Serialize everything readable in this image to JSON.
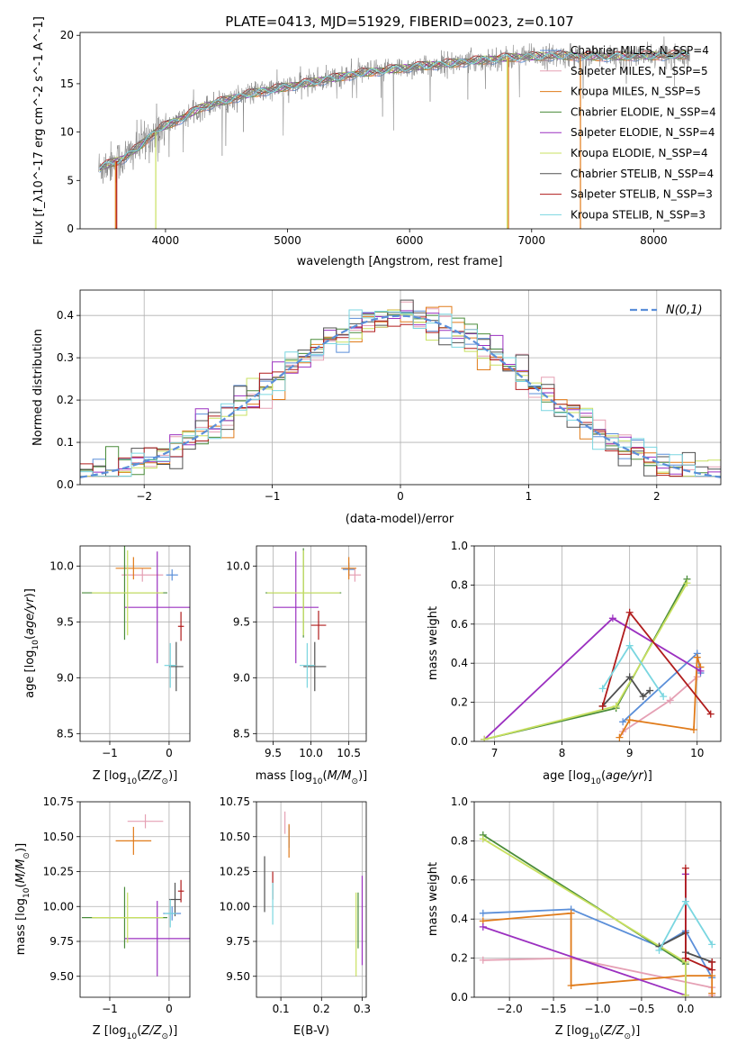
{
  "title": "PLATE=0413, MJD=51929, FIBERID=0023, z=0.107",
  "colors": {
    "chabrier_miles": "#5b8fd9",
    "salpeter_miles": "#e5a0b4",
    "kroupa_miles": "#e07b1a",
    "chabrier_elodie": "#4a8c3a",
    "salpeter_elodie": "#9b30c0",
    "kroupa_elodie": "#c8e060",
    "chabrier_stelib": "#505050",
    "salpeter_stelib": "#b01c1c",
    "kroupa_stelib": "#7ad6e0",
    "data": "#808080",
    "normal": "#5b8fd9"
  },
  "chart_data": [
    {
      "id": "spectrum",
      "type": "line",
      "xlabel": "wavelength [Angstrom, rest frame]",
      "ylabel": "Flux [f_λ10^-17 erg cm^-2 s^-1 A^-1]",
      "xlim": [
        3300,
        8550
      ],
      "ylim": [
        0,
        20.3
      ],
      "xticks": [
        4000,
        5000,
        6000,
        7000,
        8000
      ],
      "yticks": [
        0,
        5,
        10,
        15,
        20
      ],
      "legend": "right",
      "legend_entries": [
        "Chabrier MILES, N_SSP=4",
        "Salpeter MILES, N_SSP=5",
        "Kroupa MILES, N_SSP=5",
        "Chabrier ELODIE, N_SSP=4",
        "Salpeter ELODIE, N_SSP=4",
        "Kroupa ELODIE, N_SSP=4",
        "Chabrier STELIB, N_SSP=4",
        "Salpeter STELIB, N_SSP=3",
        "Kroupa STELIB, N_SSP=3"
      ],
      "continuum": [
        [
          3450,
          6.2
        ],
        [
          3550,
          6.8
        ],
        [
          3650,
          7.2
        ],
        [
          3800,
          8.7
        ],
        [
          3950,
          10.4
        ],
        [
          4100,
          11.2
        ],
        [
          4300,
          12.6
        ],
        [
          4500,
          13.3
        ],
        [
          4700,
          14.0
        ],
        [
          5000,
          14.7
        ],
        [
          5300,
          15.4
        ],
        [
          5600,
          16.1
        ],
        [
          6000,
          16.7
        ],
        [
          6400,
          17.2
        ],
        [
          6800,
          17.7
        ],
        [
          7200,
          17.9
        ],
        [
          7600,
          17.8
        ],
        [
          8000,
          17.9
        ],
        [
          8300,
          18.0
        ]
      ]
    },
    {
      "id": "residuals",
      "type": "line",
      "xlabel": "(data-model)/error",
      "ylabel": "Normed distribution",
      "xlim": [
        -2.5,
        2.5
      ],
      "ylim": [
        0,
        0.46
      ],
      "xticks": [
        -2,
        -1,
        0,
        1,
        2
      ],
      "yticks": [
        0,
        0.1,
        0.2,
        0.3,
        0.4
      ],
      "grid": true,
      "legend": "top-right",
      "normal_label": "N(0,1)",
      "bin_width": 0.1
    },
    {
      "id": "age_vs_Z",
      "type": "scatter",
      "xlabel": "Z [log10(Z/Z⊙)]",
      "ylabel": "age  [log10(age/yr)]",
      "xlim": [
        -1.5,
        0.35
      ],
      "ylim": [
        8.43,
        10.18
      ],
      "xticks": [
        -1,
        0
      ],
      "yticks": [
        8.5,
        9.0,
        9.5,
        10.0
      ],
      "grid": true,
      "points": [
        {
          "c": "chabrier_miles",
          "x": 0.05,
          "xerr": 0.1,
          "y": 9.92,
          "yerr": 0.05
        },
        {
          "c": "salpeter_miles",
          "x": -0.45,
          "xerr": 0.35,
          "y": 9.92,
          "yerr": 0.06
        },
        {
          "c": "kroupa_miles",
          "x": -0.6,
          "xerr": 0.3,
          "y": 9.98,
          "yerr": 0.1
        },
        {
          "c": "chabrier_elodie",
          "x": -0.75,
          "xerr": 0.72,
          "y": 9.76,
          "yerr": 0.42
        },
        {
          "c": "salpeter_elodie",
          "x": -0.2,
          "xerr": 0.55,
          "y": 9.63,
          "yerr": 0.5
        },
        {
          "c": "kroupa_elodie",
          "x": -0.7,
          "xerr": 0.6,
          "y": 9.76,
          "yerr": 0.38
        },
        {
          "c": "chabrier_stelib",
          "x": 0.12,
          "xerr": 0.12,
          "y": 9.1,
          "yerr": 0.22
        },
        {
          "c": "salpeter_stelib",
          "x": 0.2,
          "xerr": 0.05,
          "y": 9.46,
          "yerr": 0.13
        },
        {
          "c": "kroupa_stelib",
          "x": 0.02,
          "xerr": 0.1,
          "y": 9.11,
          "yerr": 0.2
        }
      ]
    },
    {
      "id": "age_vs_mass",
      "type": "scatter",
      "xlabel": "mass [log10(M/M⊙)]",
      "ylabel": "",
      "xlim": [
        9.28,
        10.73
      ],
      "ylim": [
        8.43,
        10.18
      ],
      "xticks": [
        9.5,
        10.0,
        10.5
      ],
      "yticks": [
        8.5,
        9.0,
        9.5,
        10.0
      ],
      "grid": true,
      "points": [
        {
          "c": "chabrier_miles",
          "x": 10.5,
          "xerr": 0.08,
          "y": 9.97,
          "yerr": 0.06
        },
        {
          "c": "salpeter_miles",
          "x": 10.58,
          "xerr": 0.08,
          "y": 9.92,
          "yerr": 0.06
        },
        {
          "c": "kroupa_miles",
          "x": 10.5,
          "xerr": 0.1,
          "y": 9.98,
          "yerr": 0.1
        },
        {
          "c": "chabrier_elodie",
          "x": 9.9,
          "xerr": 0.5,
          "y": 9.76,
          "yerr": 0.4
        },
        {
          "c": "salpeter_elodie",
          "x": 9.8,
          "xerr": 0.3,
          "y": 9.63,
          "yerr": 0.5
        },
        {
          "c": "kroupa_elodie",
          "x": 9.9,
          "xerr": 0.48,
          "y": 9.76,
          "yerr": 0.38
        },
        {
          "c": "chabrier_stelib",
          "x": 10.05,
          "xerr": 0.15,
          "y": 9.1,
          "yerr": 0.22
        },
        {
          "c": "salpeter_stelib",
          "x": 10.1,
          "xerr": 0.1,
          "y": 9.47,
          "yerr": 0.13
        },
        {
          "c": "kroupa_stelib",
          "x": 9.95,
          "xerr": 0.1,
          "y": 9.11,
          "yerr": 0.2
        }
      ]
    },
    {
      "id": "mass_weight_vs_age",
      "type": "line",
      "xlabel": "age  [log10(age/yr)]",
      "ylabel": "mass weight",
      "xlim": [
        6.7,
        10.35
      ],
      "ylim": [
        0,
        1.0
      ],
      "xticks": [
        7,
        8,
        9,
        10
      ],
      "yticks": [
        0.0,
        0.2,
        0.4,
        0.6,
        0.8,
        1.0
      ],
      "grid": true,
      "series": [
        {
          "c": "chabrier_miles",
          "x": [
            8.9,
            10.0,
            10.05
          ],
          "y": [
            0.1,
            0.45,
            0.35
          ]
        },
        {
          "c": "salpeter_miles",
          "x": [
            8.9,
            9.6,
            10.0
          ],
          "y": [
            0.05,
            0.21,
            0.33
          ]
        },
        {
          "c": "kroupa_miles",
          "x": [
            8.85,
            9.0,
            9.95,
            10.0,
            10.05
          ],
          "y": [
            0.02,
            0.11,
            0.06,
            0.43,
            0.38
          ]
        },
        {
          "c": "chabrier_elodie",
          "x": [
            6.85,
            8.8,
            9.85
          ],
          "y": [
            0.01,
            0.17,
            0.83
          ]
        },
        {
          "c": "salpeter_elodie",
          "x": [
            6.85,
            8.75,
            10.05
          ],
          "y": [
            0.01,
            0.63,
            0.36
          ]
        },
        {
          "c": "kroupa_elodie",
          "x": [
            6.85,
            8.8,
            9.85
          ],
          "y": [
            0.01,
            0.18,
            0.81
          ]
        },
        {
          "c": "chabrier_stelib",
          "x": [
            8.6,
            9.0,
            9.2,
            9.3
          ],
          "y": [
            0.18,
            0.33,
            0.23,
            0.26
          ]
        },
        {
          "c": "salpeter_stelib",
          "x": [
            8.6,
            9.0,
            10.2
          ],
          "y": [
            0.18,
            0.66,
            0.14
          ]
        },
        {
          "c": "kroupa_stelib",
          "x": [
            8.6,
            9.0,
            9.5
          ],
          "y": [
            0.27,
            0.49,
            0.23
          ]
        }
      ]
    },
    {
      "id": "mass_vs_Z",
      "type": "scatter",
      "xlabel": "Z [log10(Z/Z⊙)]",
      "ylabel": "mass [log10(M/M⊙)]",
      "xlim": [
        -1.5,
        0.35
      ],
      "ylim": [
        9.35,
        10.75
      ],
      "xticks": [
        -1,
        0
      ],
      "yticks": [
        9.5,
        9.75,
        10.0,
        10.25,
        10.5,
        10.75
      ],
      "grid": true,
      "points": [
        {
          "c": "chabrier_miles",
          "x": 0.05,
          "xerr": 0.15,
          "y": 9.95,
          "yerr": 0.05
        },
        {
          "c": "salpeter_miles",
          "x": -0.4,
          "xerr": 0.3,
          "y": 10.61,
          "yerr": 0.05
        },
        {
          "c": "kroupa_miles",
          "x": -0.6,
          "xerr": 0.3,
          "y": 10.47,
          "yerr": 0.1
        },
        {
          "c": "chabrier_elodie",
          "x": -0.75,
          "xerr": 0.72,
          "y": 9.92,
          "yerr": 0.22
        },
        {
          "c": "salpeter_elodie",
          "x": -0.2,
          "xerr": 0.55,
          "y": 9.77,
          "yerr": 0.27
        },
        {
          "c": "kroupa_elodie",
          "x": -0.7,
          "xerr": 0.6,
          "y": 9.92,
          "yerr": 0.18
        },
        {
          "c": "chabrier_stelib",
          "x": 0.1,
          "xerr": 0.1,
          "y": 10.05,
          "yerr": 0.12
        },
        {
          "c": "salpeter_stelib",
          "x": 0.2,
          "xerr": 0.05,
          "y": 10.11,
          "yerr": 0.08
        },
        {
          "c": "kroupa_stelib",
          "x": 0.02,
          "xerr": 0.1,
          "y": 9.95,
          "yerr": 0.1
        }
      ]
    },
    {
      "id": "mass_vs_ebv",
      "type": "scatter",
      "xlabel": "E(B-V)",
      "ylabel": "",
      "xlim": [
        0.04,
        0.31
      ],
      "ylim": [
        9.35,
        10.75
      ],
      "xticks": [
        0.1,
        0.2,
        0.3
      ],
      "yticks": [
        9.5,
        9.75,
        10.0,
        10.25,
        10.5,
        10.75
      ],
      "grid": true,
      "points": [
        {
          "c": "chabrier_miles",
          "x": 0.12,
          "xerr": 0,
          "y": 10.5,
          "yerr": 0.08
        },
        {
          "c": "salpeter_miles",
          "x": 0.11,
          "xerr": 0,
          "y": 10.6,
          "yerr": 0.08
        },
        {
          "c": "kroupa_miles",
          "x": 0.12,
          "xerr": 0,
          "y": 10.47,
          "yerr": 0.12
        },
        {
          "c": "chabrier_elodie",
          "x": 0.29,
          "xerr": 0,
          "y": 9.9,
          "yerr": 0.2
        },
        {
          "c": "salpeter_elodie",
          "x": 0.3,
          "xerr": 0,
          "y": 9.9,
          "yerr": 0.32
        },
        {
          "c": "kroupa_elodie",
          "x": 0.285,
          "xerr": 0,
          "y": 9.8,
          "yerr": 0.3
        },
        {
          "c": "chabrier_stelib",
          "x": 0.06,
          "xerr": 0,
          "y": 10.16,
          "yerr": 0.2
        },
        {
          "c": "salpeter_stelib",
          "x": 0.08,
          "xerr": 0,
          "y": 10.15,
          "yerr": 0.1
        },
        {
          "c": "kroupa_stelib",
          "x": 0.08,
          "xerr": 0,
          "y": 10.02,
          "yerr": 0.15
        }
      ]
    },
    {
      "id": "mass_weight_vs_Z",
      "type": "line",
      "xlabel": "Z [log10(Z/Z⊙)]",
      "ylabel": "mass weight",
      "xlim": [
        -2.4,
        0.4
      ],
      "ylim": [
        0,
        1.0
      ],
      "xticks": [
        -2.0,
        -1.5,
        -1.0,
        -0.5,
        0.0
      ],
      "yticks": [
        0.0,
        0.2,
        0.4,
        0.6,
        0.8,
        1.0
      ],
      "grid": true,
      "series": [
        {
          "c": "chabrier_miles",
          "x": [
            -2.3,
            -1.3,
            -0.3,
            0.0,
            0.3
          ],
          "y": [
            0.43,
            0.45,
            0.26,
            0.34,
            0.1
          ]
        },
        {
          "c": "salpeter_miles",
          "x": [
            -2.3,
            -1.3,
            0.3,
            0.3
          ],
          "y": [
            0.19,
            0.2,
            0.05,
            0.01
          ]
        },
        {
          "c": "kroupa_miles",
          "x": [
            -2.3,
            -1.3,
            -1.3,
            0.0,
            0.3,
            0.3
          ],
          "y": [
            0.39,
            0.43,
            0.06,
            0.11,
            0.11,
            0.02
          ]
        },
        {
          "c": "chabrier_elodie",
          "x": [
            -2.3,
            0.0,
            0.0
          ],
          "y": [
            0.83,
            0.17,
            0.01
          ]
        },
        {
          "c": "salpeter_elodie",
          "x": [
            -2.3,
            0.0,
            0.0
          ],
          "y": [
            0.36,
            0.01,
            0.63
          ]
        },
        {
          "c": "kroupa_elodie",
          "x": [
            -2.3,
            0.0,
            0.0
          ],
          "y": [
            0.81,
            0.18,
            0.01
          ]
        },
        {
          "c": "chabrier_stelib",
          "x": [
            -0.3,
            0.0,
            0.0,
            0.3
          ],
          "y": [
            0.26,
            0.33,
            0.23,
            0.18
          ]
        },
        {
          "c": "salpeter_stelib",
          "x": [
            0.0,
            0.0,
            0.3,
            0.3
          ],
          "y": [
            0.66,
            0.2,
            0.14,
            0.18
          ]
        },
        {
          "c": "kroupa_stelib",
          "x": [
            -0.3,
            0.0,
            0.3
          ],
          "y": [
            0.24,
            0.49,
            0.27
          ]
        }
      ]
    }
  ]
}
